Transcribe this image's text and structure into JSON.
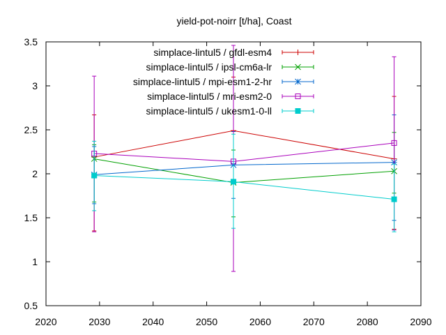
{
  "chart_data": {
    "type": "line",
    "title": "yield-pot-noirr [t/ha], Coast",
    "xlabel": "",
    "ylabel": "",
    "xlim": [
      2020,
      2090
    ],
    "ylim": [
      0.5,
      3.5
    ],
    "x_ticks": [
      "2020",
      "2030",
      "2040",
      "2050",
      "2060",
      "2070",
      "2080",
      "2090"
    ],
    "y_ticks": [
      "0.5",
      "1",
      "1.5",
      "2",
      "2.5",
      "3",
      "3.5"
    ],
    "grid": false,
    "legend_position": "top-right",
    "error_bars": true,
    "x": [
      2029,
      2055,
      2085
    ],
    "series": [
      {
        "name": "simplace-lintul5 / gfdl-esm4",
        "color": "#cc0000",
        "marker": "plus",
        "values": [
          2.19,
          2.49,
          2.17
        ],
        "err_low": [
          1.35,
          1.89,
          1.37
        ],
        "err_high": [
          2.67,
          3.1,
          2.88
        ]
      },
      {
        "name": "simplace-lintul5 / ipsl-cm6a-lr",
        "color": "#00a000",
        "marker": "cross",
        "values": [
          2.17,
          1.9,
          2.03
        ],
        "err_low": [
          1.68,
          1.51,
          1.78
        ],
        "err_high": [
          2.33,
          2.27,
          2.47
        ]
      },
      {
        "name": "simplace-lintul5 / mpi-esm1-2-hr",
        "color": "#0066cc",
        "marker": "star",
        "values": [
          1.99,
          2.1,
          2.13
        ],
        "err_low": [
          1.66,
          1.72,
          1.47
        ],
        "err_high": [
          2.31,
          2.48,
          2.67
        ]
      },
      {
        "name": "simplace-lintul5 / mri-esm2-0",
        "color": "#aa00bb",
        "marker": "square-open",
        "values": [
          2.23,
          2.14,
          2.35
        ],
        "err_low": [
          1.34,
          0.89,
          1.36
        ],
        "err_high": [
          3.11,
          3.46,
          3.33
        ]
      },
      {
        "name": "simplace-lintul5 / ukesm1-0-ll",
        "color": "#00cccc",
        "marker": "square-filled",
        "values": [
          1.98,
          1.91,
          1.71
        ],
        "err_low": [
          1.58,
          1.38,
          1.34
        ],
        "err_high": [
          2.37,
          2.45,
          2.11
        ]
      }
    ]
  }
}
